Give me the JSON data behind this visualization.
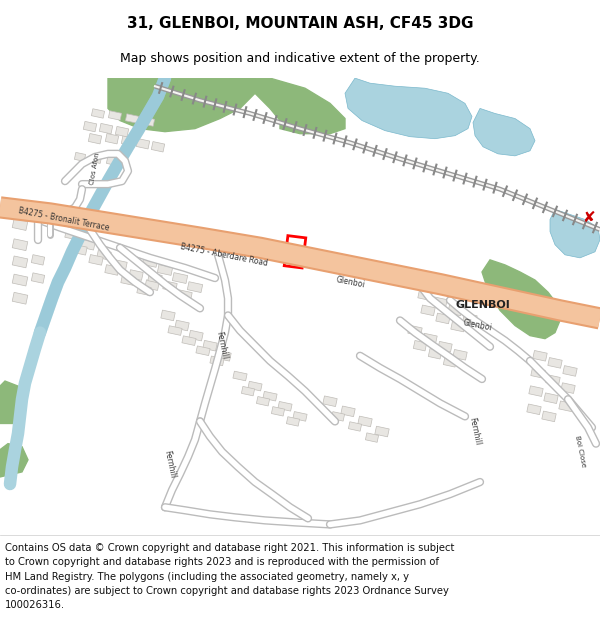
{
  "title": "31, GLENBOI, MOUNTAIN ASH, CF45 3DG",
  "subtitle": "Map shows position and indicative extent of the property.",
  "copyright_text": "Contains OS data © Crown copyright and database right 2021. This information is subject to Crown copyright and database rights 2023 and is reproduced with the permission of HM Land Registry. The polygons (including the associated geometry, namely x, y co-ordinates) are subject to Crown copyright and database rights 2023 Ordnance Survey 100026316.",
  "background_color": "#ffffff",
  "map_bg_color": "#f5f4f2",
  "road_main_color": "#f4c49e",
  "road_main_border": "#e8a070",
  "road_minor_color": "#ffffff",
  "road_minor_border": "#cccccc",
  "building_color": "#e8e6e2",
  "building_border": "#c0bdb8",
  "water_color": "#aad3df",
  "water_border": "#7ab8cc",
  "green_color": "#8db87a",
  "railway_color": "#888888",
  "river_color": "#aad3df",
  "plot_color": "#ff0000",
  "title_fontsize": 11,
  "subtitle_fontsize": 9,
  "copyright_fontsize": 7.2,
  "label_fontsize": 7
}
